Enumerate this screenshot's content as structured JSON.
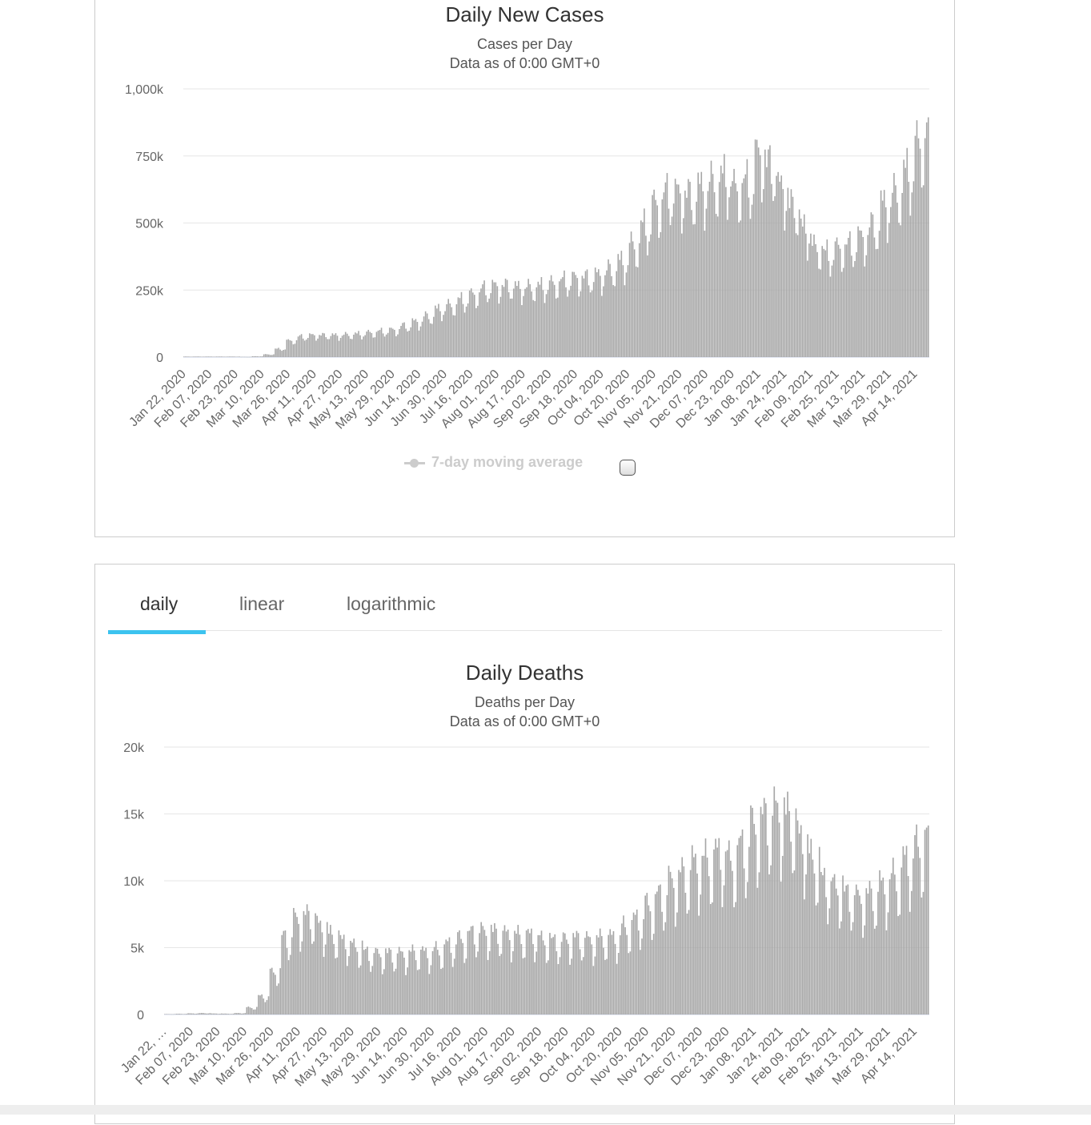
{
  "chart_data": [
    {
      "type": "bar",
      "title": "Daily New Cases",
      "subtitle": "Cases per Day",
      "subtitle2": "Data as of 0:00 GMT+0",
      "xlabel": "",
      "ylabel": "",
      "start_date": "Jan 22, 2020",
      "num_days": 457,
      "granularity_note": "weekly averages (k) expanded to daily with weekday factors",
      "weekly_values_k": [
        2,
        2,
        2,
        2,
        2,
        1,
        3,
        10,
        30,
        60,
        75,
        80,
        80,
        80,
        82,
        85,
        90,
        95,
        100,
        115,
        130,
        150,
        175,
        190,
        210,
        230,
        250,
        260,
        260,
        255,
        255,
        260,
        270,
        280,
        290,
        290,
        300,
        320,
        350,
        410,
        480,
        560,
        600,
        600,
        590,
        620,
        640,
        660,
        620,
        640,
        740,
        700,
        620,
        550,
        470,
        400,
        380,
        400,
        410,
        440,
        480,
        560,
        600,
        680,
        780,
        840
      ],
      "weekday_factors": [
        1.06,
        1.09,
        1.1,
        0.97,
        0.8,
        0.86,
        1.0
      ],
      "unit_multiplier": 1000,
      "ylim": [
        0,
        1000000
      ],
      "yticks": [
        {
          "v": 0,
          "label": "0"
        },
        {
          "v": 250000,
          "label": "250k"
        },
        {
          "v": 500000,
          "label": "500k"
        },
        {
          "v": 750000,
          "label": "750k"
        },
        {
          "v": 1000000,
          "label": "1,000k"
        }
      ],
      "xticks": [
        "Jan 22, 2020",
        "Feb 07, 2020",
        "Feb 23, 2020",
        "Mar 10, 2020",
        "Mar 26, 2020",
        "Apr 11, 2020",
        "Apr 27, 2020",
        "May 13, 2020",
        "May 29, 2020",
        "Jun 14, 2020",
        "Jun 30, 2020",
        "Jul 16, 2020",
        "Aug 01, 2020",
        "Aug 17, 2020",
        "Sep 02, 2020",
        "Sep 18, 2020",
        "Oct 04, 2020",
        "Oct 20, 2020",
        "Nov 05, 2020",
        "Nov 21, 2020",
        "Dec 07, 2020",
        "Dec 23, 2020",
        "Jan 08, 2021",
        "Jan 24, 2021",
        "Feb 09, 2021",
        "Feb 25, 2021",
        "Mar 13, 2021",
        "Mar 29, 2021",
        "Apr 14, 2021"
      ],
      "xtick_interval_days": 16,
      "legend": {
        "label": "7-day moving average",
        "placement": "bottom",
        "enabled": false
      },
      "grid": true,
      "bar_color": "#a6a6a6"
    },
    {
      "type": "bar",
      "title": "Daily Deaths",
      "subtitle": "Deaths per Day",
      "subtitle2": "Data as of 0:00 GMT+0",
      "xlabel": "",
      "ylabel": "",
      "start_date": "Jan 22, 2020",
      "num_days": 457,
      "weekly_values_k": [
        0.03,
        0.05,
        0.08,
        0.1,
        0.07,
        0.06,
        0.1,
        0.5,
        1.3,
        3,
        5.5,
        6.8,
        7,
        6.3,
        5.6,
        5.2,
        4.8,
        4.4,
        4.3,
        4.3,
        4.3,
        4.4,
        4.4,
        4.6,
        5,
        5.4,
        5.8,
        5.9,
        5.8,
        5.7,
        5.6,
        5.6,
        5.3,
        5.2,
        5.3,
        5.4,
        5.3,
        5.4,
        5.5,
        6.2,
        6.8,
        7.8,
        8.5,
        9.5,
        10,
        10.8,
        11,
        11.5,
        11,
        12,
        13.5,
        14,
        14.5,
        14,
        12.5,
        11,
        9.5,
        9,
        8.5,
        8.3,
        8.5,
        9.2,
        9.8,
        11,
        12,
        12.7
      ],
      "weekday_factors": [
        1.12,
        1.14,
        1.1,
        0.95,
        0.72,
        0.8,
        1.1
      ],
      "unit_multiplier": 1000,
      "ylim": [
        0,
        20000
      ],
      "yticks": [
        {
          "v": 0,
          "label": "0"
        },
        {
          "v": 5000,
          "label": "5k"
        },
        {
          "v": 10000,
          "label": "10k"
        },
        {
          "v": 15000,
          "label": "15k"
        },
        {
          "v": 20000,
          "label": "20k"
        }
      ],
      "xticks": [
        "Jan 22, …",
        "Feb 07, 2020",
        "Feb 23, 2020",
        "Mar 10, 2020",
        "Mar 26, 2020",
        "Apr 11, 2020",
        "Apr 27, 2020",
        "May 13, 2020",
        "May 29, 2020",
        "Jun 14, 2020",
        "Jun 30, 2020",
        "Jul 16, 2020",
        "Aug 01, 2020",
        "Aug 17, 2020",
        "Sep 02, 2020",
        "Sep 18, 2020",
        "Oct 04, 2020",
        "Oct 20, 2020",
        "Nov 05, 2020",
        "Nov 21, 2020",
        "Dec 07, 2020",
        "Dec 23, 2020",
        "Jan 08, 2021",
        "Jan 24, 2021",
        "Feb 09, 2021",
        "Feb 25, 2021",
        "Mar 13, 2021",
        "Mar 29, 2021",
        "Apr 14, 2021"
      ],
      "xtick_interval_days": 16,
      "grid": true,
      "bar_color": "#a6a6a6"
    }
  ],
  "tabs": [
    {
      "label": "daily",
      "active": true
    },
    {
      "label": "linear",
      "active": false
    },
    {
      "label": "logarithmic",
      "active": false
    }
  ],
  "colors": {
    "tab_active": "#3cc3ef",
    "grid": "#e6e6e6",
    "axis": "#ccd6eb"
  }
}
